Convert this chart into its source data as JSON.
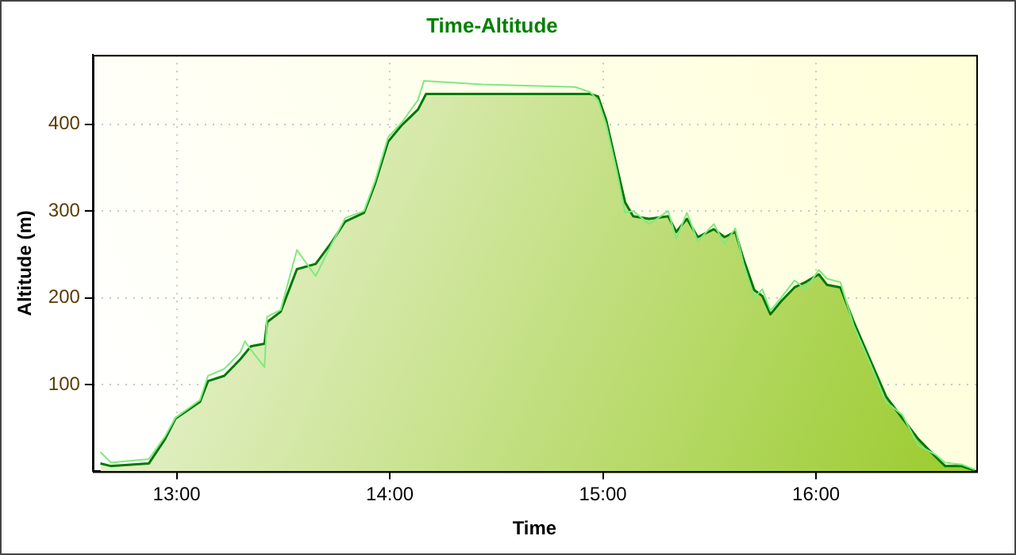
{
  "chart_data": {
    "type": "line",
    "title": "Time-Altitude",
    "xlabel": "Time",
    "ylabel": "Altitude (m)",
    "xlim": [
      12.606,
      16.752
    ],
    "xticks": [
      {
        "value": 13,
        "label": "13:00"
      },
      {
        "value": 14,
        "label": "14:00"
      },
      {
        "value": 15,
        "label": "15:00"
      },
      {
        "value": 16,
        "label": "16:00"
      }
    ],
    "ylim": [
      0,
      480
    ],
    "yticks": [
      100,
      200,
      300,
      400
    ],
    "grid": true,
    "legend": false,
    "marker": "none",
    "line_style": "solid",
    "series": [
      {
        "type": "line",
        "color": "#80e880",
        "x": [
          12.642,
          12.692,
          12.869,
          12.945,
          12.995,
          13.109,
          13.147,
          13.223,
          13.298,
          13.32,
          13.348,
          13.412,
          13.424,
          13.488,
          13.564,
          13.652,
          13.727,
          13.791,
          13.879,
          13.93,
          13.992,
          14.056,
          14.132,
          14.16,
          14.435,
          14.87,
          14.94,
          14.977,
          15.015,
          15.066,
          15.104,
          15.142,
          15.217,
          15.306,
          15.344,
          15.394,
          15.445,
          15.52,
          15.571,
          15.621,
          15.659,
          15.71,
          15.748,
          15.786,
          15.836,
          15.899,
          15.95,
          16.013,
          16.051,
          16.114,
          16.177,
          16.253,
          16.329,
          16.405,
          16.48,
          16.556,
          16.606,
          16.682,
          16.745
        ],
        "values": [
          22,
          10,
          14,
          40,
          62,
          82,
          110,
          118,
          137,
          150,
          140,
          120,
          178,
          186,
          255,
          225,
          262,
          292,
          300,
          334,
          385,
          402,
          428,
          450,
          446,
          443,
          437,
          428,
          400,
          345,
          298,
          300,
          285,
          300,
          268,
          298,
          265,
          285,
          262,
          280,
          240,
          200,
          210,
          185,
          200,
          220,
          210,
          232,
          222,
          218,
          168,
          125,
          80,
          65,
          30,
          20,
          10,
          8,
          2
        ]
      },
      {
        "type": "area",
        "color": "#007800",
        "x": [
          12.642,
          12.692,
          12.869,
          12.945,
          12.995,
          13.109,
          13.147,
          13.223,
          13.298,
          13.348,
          13.412,
          13.424,
          13.488,
          13.564,
          13.652,
          13.727,
          13.791,
          13.879,
          13.93,
          13.992,
          14.056,
          14.132,
          14.17,
          14.939,
          14.977,
          15.015,
          15.066,
          15.104,
          15.142,
          15.217,
          15.306,
          15.344,
          15.394,
          15.445,
          15.52,
          15.571,
          15.621,
          15.659,
          15.71,
          15.748,
          15.786,
          15.836,
          15.899,
          15.95,
          16.013,
          16.051,
          16.114,
          16.177,
          16.253,
          16.329,
          16.405,
          16.48,
          16.556,
          16.606,
          16.682,
          16.745
        ],
        "values": [
          9,
          6,
          9,
          37,
          61,
          80,
          104,
          110,
          129,
          144,
          147,
          172,
          184,
          233,
          239,
          264,
          288,
          298,
          331,
          380,
          399,
          417,
          435,
          435,
          432,
          405,
          350,
          310,
          294,
          291,
          294,
          276,
          291,
          270,
          279,
          270,
          276,
          245,
          209,
          202,
          181,
          196,
          212,
          218,
          227,
          215,
          212,
          172,
          129,
          86,
          61,
          37,
          18,
          6,
          6,
          1
        ]
      }
    ]
  }
}
